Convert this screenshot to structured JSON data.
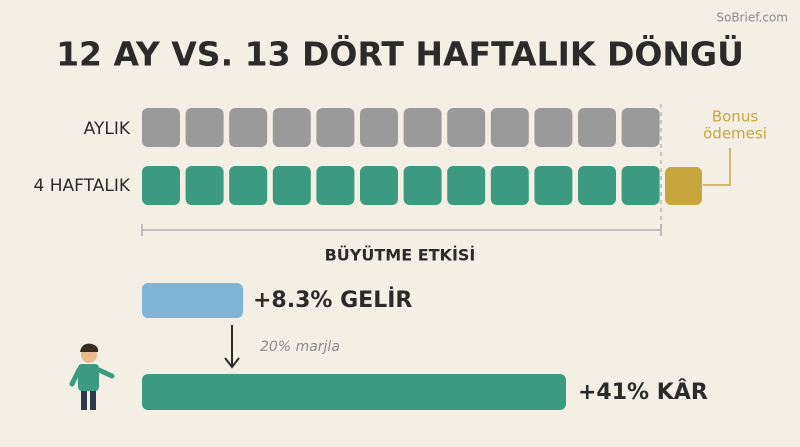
{
  "watermark": "SoBrief.com",
  "header": {
    "title": "12 AY VS. 13 DÖRT HAFTALIK DÖNGÜ"
  },
  "rows": [
    {
      "label": "AYLIK"
    },
    {
      "label": "4 HAFTALIK"
    }
  ],
  "bonus": {
    "line1": "Bonus",
    "line2": "ödemesi"
  },
  "effect": {
    "title": "BÜYÜTME ETKİSİ",
    "revenue": "+8.3% GELİR",
    "margin_note": "20% marjla",
    "profit": "+41% KÂR"
  }
}
